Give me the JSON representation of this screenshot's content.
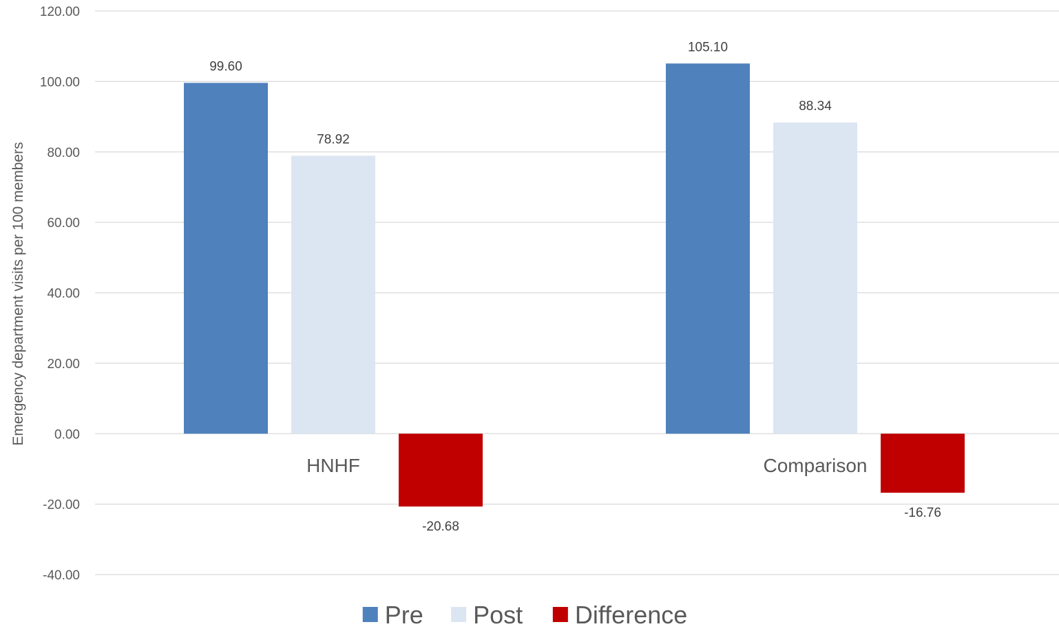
{
  "chart_data": {
    "type": "bar",
    "title": "",
    "xlabel": "",
    "ylabel": "Emergency department visits per 100 members",
    "ylim": [
      -40,
      120
    ],
    "yticks": [
      "-40.00",
      "-20.00",
      "0.00",
      "20.00",
      "40.00",
      "60.00",
      "80.00",
      "100.00",
      "120.00"
    ],
    "categories": [
      "HNHF",
      "Comparison"
    ],
    "series": [
      {
        "name": "Pre",
        "color": "#4f81bd",
        "values": [
          99.6,
          105.1
        ],
        "labels": [
          "99.60",
          "105.10"
        ]
      },
      {
        "name": "Post",
        "color": "#dce6f2",
        "values": [
          78.92,
          88.34
        ],
        "labels": [
          "78.92",
          "88.34"
        ]
      },
      {
        "name": "Difference",
        "color": "#c00000",
        "values": [
          -20.68,
          -16.76
        ],
        "labels": [
          "-20.68",
          "-16.76"
        ]
      }
    ],
    "grid": true,
    "legend": "bottom"
  }
}
